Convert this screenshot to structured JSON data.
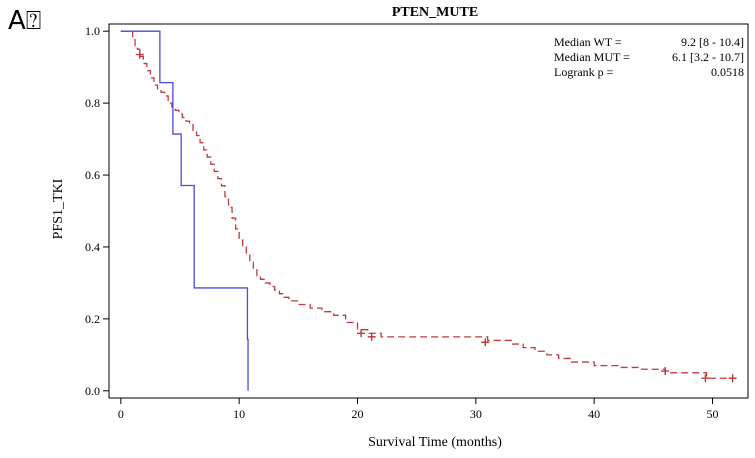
{
  "panel_label": "A⍰",
  "chart_data": {
    "type": "line",
    "title": "PTEN_MUTE",
    "xlabel": "Survival Time (months)",
    "ylabel": "PFS1_TKI",
    "xlim": [
      -1,
      53
    ],
    "ylim": [
      -0.02,
      1.02
    ],
    "x_ticks": [
      0,
      10,
      20,
      30,
      40,
      50
    ],
    "y_ticks": [
      0.0,
      0.2,
      0.4,
      0.6,
      0.8,
      1.0
    ],
    "x_tick_labels": [
      "0",
      "10",
      "20",
      "30",
      "40",
      "50"
    ],
    "y_tick_labels": [
      "0.0",
      "0.2",
      "0.4",
      "0.6",
      "0.8",
      "1.0"
    ],
    "grid": false,
    "annotations": [
      {
        "label": "Median WT =",
        "value": "9.2 [8 - 10.4]"
      },
      {
        "label": "Median MUT =",
        "value": "6.1 [3.2 - 10.7]"
      },
      {
        "label": "Logrank p =",
        "value": "0.0518"
      }
    ],
    "series": [
      {
        "color": "#c0393f",
        "style": "dashed",
        "x": [
          0,
          1.0,
          1.2,
          1.4,
          1.6,
          1.9,
          2.2,
          2.5,
          2.8,
          3.1,
          3.4,
          3.7,
          4.0,
          4.3,
          4.6,
          4.9,
          5.2,
          5.5,
          5.8,
          6.1,
          6.4,
          6.7,
          7.0,
          7.3,
          7.6,
          7.9,
          8.2,
          8.5,
          8.8,
          9.1,
          9.4,
          9.7,
          10.0,
          10.3,
          10.6,
          10.9,
          11.2,
          11.5,
          11.8,
          12.2,
          12.6,
          13.0,
          13.4,
          13.8,
          14.2,
          15.0,
          16.0,
          17.0,
          18.0,
          19.0,
          20.0,
          21.0,
          22.0,
          24.0,
          26.0,
          28.0,
          31.0,
          33.0,
          34.0,
          35.0,
          36.0,
          37.0,
          38.0,
          40.0,
          42.0,
          44.0,
          46.0,
          48.0,
          49.5,
          52.0
        ],
        "y": [
          1.0,
          0.98,
          0.96,
          0.95,
          0.93,
          0.91,
          0.89,
          0.87,
          0.85,
          0.84,
          0.83,
          0.82,
          0.8,
          0.79,
          0.78,
          0.77,
          0.76,
          0.75,
          0.74,
          0.72,
          0.71,
          0.69,
          0.67,
          0.65,
          0.63,
          0.61,
          0.59,
          0.57,
          0.54,
          0.51,
          0.48,
          0.45,
          0.42,
          0.4,
          0.38,
          0.36,
          0.34,
          0.32,
          0.31,
          0.3,
          0.29,
          0.28,
          0.27,
          0.26,
          0.25,
          0.24,
          0.23,
          0.22,
          0.21,
          0.19,
          0.17,
          0.16,
          0.15,
          0.15,
          0.15,
          0.15,
          0.14,
          0.13,
          0.12,
          0.11,
          0.1,
          0.09,
          0.08,
          0.07,
          0.065,
          0.06,
          0.05,
          0.05,
          0.035,
          0.035
        ],
        "censor_x": [
          1.6,
          20.3,
          21.2,
          30.8,
          46.0,
          49.4,
          51.7
        ],
        "censor_y": [
          0.935,
          0.16,
          0.15,
          0.135,
          0.055,
          0.035,
          0.035
        ]
      },
      {
        "color": "#4a4adf",
        "style": "solid",
        "x": [
          0,
          3.3,
          4.4,
          5.1,
          5.5,
          6.2,
          10.7,
          10.75
        ],
        "y": [
          1.0,
          0.857,
          0.714,
          0.571,
          0.571,
          0.286,
          0.143,
          0.0
        ]
      }
    ]
  }
}
